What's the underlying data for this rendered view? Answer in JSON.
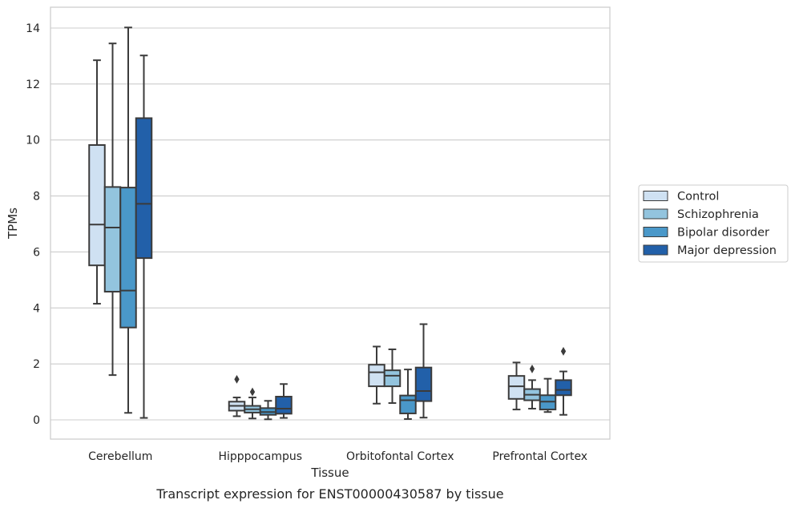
{
  "chart_data": {
    "type": "box",
    "title": "",
    "caption": "Transcript expression for ENST00000430587 by tissue",
    "xlabel": "Tissue",
    "ylabel": "TPMs",
    "ylim": [
      -0.68,
      14.7
    ],
    "yticks": [
      0,
      2,
      4,
      6,
      8,
      10,
      12,
      14
    ],
    "grid": "horizontal",
    "legend_position": "right",
    "categories": [
      "Cerebellum",
      "Hipppocampus",
      "Orbitofontal Cortex",
      "Prefrontal Cortex"
    ],
    "series": [
      {
        "name": "Control",
        "color": "#cfe1f2",
        "boxes": [
          {
            "whislo": 4.15,
            "q1": 5.52,
            "med": 6.98,
            "q3": 9.82,
            "whishi": 12.85,
            "fliers": []
          },
          {
            "whislo": 0.13,
            "q1": 0.33,
            "med": 0.5,
            "q3": 0.65,
            "whishi": 0.8,
            "fliers": [
              1.45
            ]
          },
          {
            "whislo": 0.58,
            "q1": 1.2,
            "med": 1.7,
            "q3": 1.97,
            "whishi": 2.62,
            "fliers": []
          },
          {
            "whislo": 0.37,
            "q1": 0.75,
            "med": 1.2,
            "q3": 1.57,
            "whishi": 2.05,
            "fliers": []
          }
        ]
      },
      {
        "name": "Schizophrenia",
        "color": "#93c4de",
        "boxes": [
          {
            "whislo": 1.6,
            "q1": 4.58,
            "med": 6.87,
            "q3": 8.32,
            "whishi": 13.45,
            "fliers": []
          },
          {
            "whislo": 0.05,
            "q1": 0.26,
            "med": 0.38,
            "q3": 0.5,
            "whishi": 0.8,
            "fliers": [
              1.0
            ]
          },
          {
            "whislo": 0.6,
            "q1": 1.2,
            "med": 1.58,
            "q3": 1.77,
            "whishi": 2.52,
            "fliers": []
          },
          {
            "whislo": 0.4,
            "q1": 0.7,
            "med": 0.9,
            "q3": 1.1,
            "whishi": 1.42,
            "fliers": [
              1.82
            ]
          }
        ]
      },
      {
        "name": "Bipolar disorder",
        "color": "#4a98c9",
        "boxes": [
          {
            "whislo": 0.25,
            "q1": 3.3,
            "med": 4.62,
            "q3": 8.3,
            "whishi": 14.02,
            "fliers": []
          },
          {
            "whislo": 0.02,
            "q1": 0.18,
            "med": 0.28,
            "q3": 0.42,
            "whishi": 0.68,
            "fliers": []
          },
          {
            "whislo": 0.03,
            "q1": 0.23,
            "med": 0.7,
            "q3": 0.87,
            "whishi": 1.8,
            "fliers": []
          },
          {
            "whislo": 0.28,
            "q1": 0.37,
            "med": 0.65,
            "q3": 0.88,
            "whishi": 1.47,
            "fliers": []
          }
        ]
      },
      {
        "name": "Major depression",
        "color": "#2260a9",
        "boxes": [
          {
            "whislo": 0.07,
            "q1": 5.78,
            "med": 7.72,
            "q3": 10.78,
            "whishi": 13.02,
            "fliers": []
          },
          {
            "whislo": 0.07,
            "q1": 0.22,
            "med": 0.4,
            "q3": 0.83,
            "whishi": 1.28,
            "fliers": []
          },
          {
            "whislo": 0.08,
            "q1": 0.67,
            "med": 1.03,
            "q3": 1.87,
            "whishi": 3.42,
            "fliers": []
          },
          {
            "whislo": 0.18,
            "q1": 0.88,
            "med": 1.07,
            "q3": 1.42,
            "whishi": 1.73,
            "fliers": [
              2.45
            ]
          }
        ]
      }
    ]
  }
}
